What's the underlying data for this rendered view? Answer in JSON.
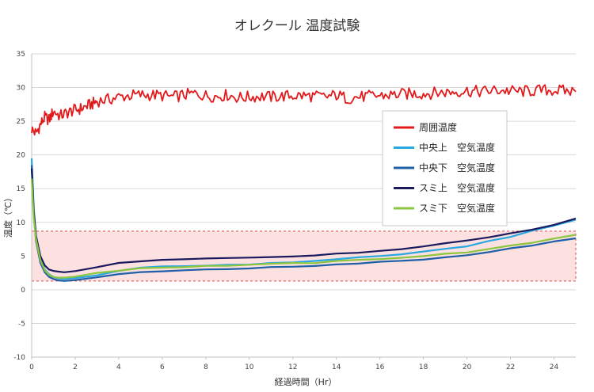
{
  "chart_data": {
    "type": "line",
    "title": "オレクール 温度試験",
    "xlabel": "経過時間（Hr）",
    "ylabel": "温度（℃）",
    "xlim": [
      0,
      25
    ],
    "ylim": [
      -10,
      35
    ],
    "x_ticks": [
      "0",
      "2",
      "4",
      "6",
      "8",
      "10",
      "12",
      "14",
      "16",
      "18",
      "20",
      "22",
      "24"
    ],
    "y_ticks": [
      "-10",
      "-5",
      "0",
      "5",
      "10",
      "15",
      "20",
      "25",
      "30",
      "35"
    ],
    "grid": "horizontal",
    "legend_position": "right",
    "target_band": {
      "ymin": 1.3,
      "ymax": 8.7,
      "fill": "#fde1e1",
      "border": "#e04848"
    },
    "series": [
      {
        "name": "周囲温度",
        "color": "#e31a1c",
        "x": [
          0,
          0.2,
          0.4,
          0.6,
          0.8,
          1.0,
          1.3,
          1.6,
          1.9,
          2.2,
          2.5,
          2.8,
          3.0,
          3.5,
          4,
          4.5,
          5,
          5.5,
          6,
          6.5,
          7,
          7.5,
          8,
          8.5,
          9,
          9.5,
          10,
          10.5,
          11,
          11.5,
          12,
          12.5,
          13,
          13.5,
          14,
          14.5,
          15,
          15.5,
          16,
          16.5,
          17,
          17.5,
          18,
          18.5,
          19,
          19.5,
          20,
          20.5,
          21,
          21.5,
          22,
          22.5,
          23,
          23.5,
          24,
          24.5,
          25
        ],
        "y": [
          23.8,
          23.2,
          24.5,
          25.6,
          25.2,
          26.5,
          25.8,
          26.2,
          26.6,
          26.8,
          27.2,
          27.6,
          28,
          28.2,
          28.6,
          28.8,
          28.9,
          28.9,
          28.8,
          28.6,
          28.9,
          29.1,
          28.8,
          28.7,
          28.9,
          28.5,
          28.6,
          28.7,
          28.6,
          28.7,
          28.8,
          28.8,
          28.7,
          28.6,
          28.9,
          28.4,
          28.6,
          28.7,
          28.8,
          28.9,
          29.0,
          29.1,
          29.1,
          29.2,
          29.3,
          29.4,
          29.5,
          29.4,
          29.5,
          29.6,
          29.5,
          29.4,
          29.5,
          29.6,
          29.6,
          29.5,
          29.4
        ]
      },
      {
        "name": "中央上　空気温度",
        "color": "#29a8e0",
        "x": [
          0,
          0.1,
          0.2,
          0.4,
          0.6,
          0.8,
          1.0,
          1.2,
          1.5,
          2,
          3,
          4,
          5,
          6,
          7,
          8,
          9,
          10,
          11,
          12,
          13,
          14,
          15,
          16,
          17,
          18,
          19,
          20,
          21,
          22,
          23,
          24,
          25
        ],
        "y": [
          19.5,
          12,
          8,
          4.5,
          3.0,
          2.3,
          1.9,
          1.7,
          1.6,
          1.7,
          2.2,
          2.8,
          3.2,
          3.4,
          3.5,
          3.6,
          3.7,
          3.8,
          3.9,
          4.1,
          4.3,
          4.5,
          4.8,
          5.0,
          5.3,
          5.6,
          6.0,
          6.5,
          7.2,
          7.9,
          8.7,
          9.5,
          10.4
        ]
      },
      {
        "name": "中央下　空気温度",
        "color": "#1f5fa8",
        "x": [
          0,
          0.1,
          0.2,
          0.4,
          0.6,
          0.8,
          1.0,
          1.2,
          1.5,
          2,
          3,
          4,
          5,
          6,
          7,
          8,
          9,
          10,
          11,
          12,
          13,
          14,
          15,
          16,
          17,
          18,
          19,
          20,
          21,
          22,
          23,
          24,
          25
        ],
        "y": [
          18.5,
          11,
          7.2,
          4.0,
          2.6,
          1.9,
          1.6,
          1.4,
          1.3,
          1.4,
          1.8,
          2.3,
          2.6,
          2.8,
          2.9,
          3.0,
          3.1,
          3.2,
          3.3,
          3.4,
          3.5,
          3.7,
          3.9,
          4.1,
          4.3,
          4.5,
          4.8,
          5.2,
          5.6,
          6.1,
          6.6,
          7.1,
          7.6
        ]
      },
      {
        "name": "スミ上　空気温度",
        "color": "#1a1a5e",
        "x": [
          0,
          0.1,
          0.2,
          0.4,
          0.6,
          0.8,
          1.0,
          1.2,
          1.5,
          2,
          3,
          4,
          5,
          6,
          7,
          8,
          9,
          10,
          11,
          12,
          13,
          14,
          15,
          16,
          17,
          18,
          19,
          20,
          21,
          22,
          23,
          24,
          25
        ],
        "y": [
          18.0,
          11.5,
          8.0,
          5.0,
          3.6,
          3.0,
          2.8,
          2.7,
          2.6,
          2.8,
          3.4,
          3.9,
          4.2,
          4.4,
          4.5,
          4.6,
          4.7,
          4.8,
          4.9,
          5.0,
          5.1,
          5.3,
          5.5,
          5.8,
          6.1,
          6.5,
          6.9,
          7.3,
          7.8,
          8.4,
          9.0,
          9.7,
          10.5
        ]
      },
      {
        "name": "スミ下　空気温度",
        "color": "#8cc63f",
        "x": [
          0,
          0.1,
          0.2,
          0.4,
          0.6,
          0.8,
          1.0,
          1.2,
          1.5,
          2,
          3,
          4,
          5,
          6,
          7,
          8,
          9,
          10,
          11,
          12,
          13,
          14,
          15,
          16,
          17,
          18,
          19,
          20,
          21,
          22,
          23,
          24,
          25
        ],
        "y": [
          16.5,
          10.5,
          7.5,
          4.4,
          2.9,
          2.2,
          1.9,
          1.8,
          1.8,
          2.0,
          2.5,
          2.9,
          3.2,
          3.3,
          3.4,
          3.5,
          3.6,
          3.7,
          3.8,
          3.9,
          4.0,
          4.2,
          4.4,
          4.6,
          4.8,
          5.0,
          5.3,
          5.6,
          6.0,
          6.5,
          7.0,
          7.6,
          8.2
        ]
      }
    ]
  }
}
